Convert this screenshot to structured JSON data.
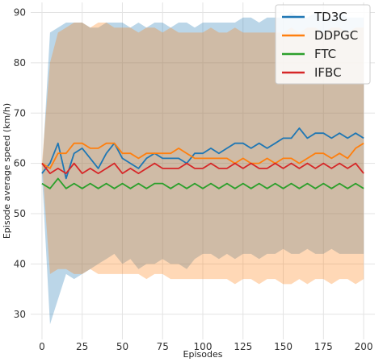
{
  "chart_data": {
    "type": "line",
    "title": "",
    "xlabel": "Episodes",
    "ylabel": "Episode average speed (km/h)",
    "xlim": [
      -7,
      207
    ],
    "ylim": [
      25,
      92
    ],
    "xticks": [
      0,
      25,
      50,
      75,
      100,
      125,
      150,
      175,
      200
    ],
    "yticks": [
      30,
      40,
      50,
      60,
      70,
      80,
      90
    ],
    "grid": true,
    "legend_position": "top-right",
    "x": [
      0,
      5,
      10,
      15,
      20,
      25,
      30,
      35,
      40,
      45,
      50,
      55,
      60,
      65,
      70,
      75,
      80,
      85,
      90,
      95,
      100,
      105,
      110,
      115,
      120,
      125,
      130,
      135,
      140,
      145,
      150,
      155,
      160,
      165,
      170,
      175,
      180,
      185,
      190,
      195,
      200
    ],
    "series": [
      {
        "name": "TD3C",
        "color": "#1f77b4",
        "values": [
          58,
          60,
          64,
          57,
          62,
          63,
          61,
          59,
          62,
          64,
          61,
          60,
          59,
          61,
          62,
          61,
          61,
          61,
          60,
          62,
          62,
          63,
          62,
          63,
          64,
          64,
          63,
          64,
          63,
          64,
          65,
          65,
          67,
          65,
          66,
          66,
          65,
          66,
          65,
          66,
          65
        ],
        "band": {
          "upper": [
            58,
            86,
            87,
            88,
            88,
            88,
            87,
            87,
            88,
            88,
            88,
            87,
            88,
            87,
            88,
            88,
            87,
            88,
            88,
            87,
            88,
            88,
            88,
            88,
            88,
            89,
            89,
            88,
            89,
            89,
            89,
            90,
            89,
            89,
            90,
            89,
            89,
            90,
            89,
            89,
            89
          ],
          "lower": [
            58,
            28,
            33,
            38,
            37,
            38,
            39,
            40,
            41,
            42,
            40,
            41,
            39,
            40,
            40,
            41,
            40,
            40,
            39,
            41,
            42,
            42,
            41,
            42,
            41,
            42,
            42,
            41,
            42,
            42,
            43,
            42,
            42,
            43,
            42,
            42,
            43,
            42,
            42,
            42,
            42
          ]
        }
      },
      {
        "name": "DDPGC",
        "color": "#ff7f0e",
        "values": [
          60,
          59,
          62,
          62,
          64,
          64,
          63,
          63,
          64,
          64,
          62,
          62,
          61,
          62,
          62,
          62,
          62,
          63,
          62,
          61,
          61,
          61,
          61,
          61,
          60,
          61,
          60,
          60,
          61,
          60,
          61,
          61,
          60,
          61,
          62,
          62,
          61,
          62,
          61,
          63,
          64
        ],
        "band": {
          "upper": [
            60,
            80,
            86,
            87,
            88,
            88,
            87,
            88,
            88,
            87,
            87,
            87,
            86,
            87,
            87,
            86,
            87,
            86,
            86,
            86,
            86,
            87,
            86,
            86,
            87,
            86,
            86,
            86,
            86,
            86,
            86,
            87,
            86,
            87,
            87,
            86,
            87,
            87,
            86,
            87,
            87
          ],
          "lower": [
            60,
            38,
            39,
            39,
            38,
            38,
            39,
            38,
            38,
            38,
            38,
            38,
            38,
            37,
            38,
            38,
            37,
            37,
            37,
            37,
            37,
            37,
            37,
            37,
            36,
            37,
            37,
            36,
            37,
            37,
            36,
            36,
            37,
            36,
            37,
            37,
            36,
            37,
            37,
            36,
            37
          ]
        }
      },
      {
        "name": "FTC",
        "color": "#2ca02c",
        "values": [
          56,
          55,
          57,
          55,
          56,
          55,
          56,
          55,
          56,
          55,
          56,
          55,
          56,
          55,
          56,
          56,
          55,
          56,
          55,
          56,
          55,
          56,
          55,
          56,
          55,
          56,
          55,
          56,
          55,
          56,
          55,
          56,
          55,
          56,
          55,
          56,
          55,
          56,
          55,
          56,
          55
        ]
      },
      {
        "name": "IFBC",
        "color": "#d62728",
        "values": [
          60,
          58,
          59,
          58,
          60,
          58,
          59,
          58,
          59,
          60,
          58,
          59,
          58,
          59,
          60,
          59,
          59,
          59,
          60,
          59,
          59,
          60,
          59,
          59,
          60,
          59,
          60,
          59,
          59,
          60,
          59,
          60,
          59,
          60,
          59,
          60,
          59,
          60,
          59,
          60,
          58
        ]
      }
    ]
  }
}
